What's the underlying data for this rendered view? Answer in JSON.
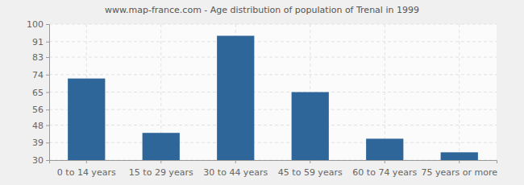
{
  "chart_data": {
    "type": "bar",
    "title": "www.map-france.com - Age distribution of population of Trenal in 1999",
    "categories": [
      "0 to 14 years",
      "15 to 29 years",
      "30 to 44 years",
      "45 to 59 years",
      "60 to 74 years",
      "75 years or more"
    ],
    "values": [
      72,
      44,
      94,
      65,
      41,
      34
    ],
    "color": "#2f6699",
    "ylim": [
      30,
      100
    ],
    "yticks": [
      30,
      39,
      48,
      56,
      65,
      74,
      83,
      91,
      100
    ],
    "grid": true
  }
}
